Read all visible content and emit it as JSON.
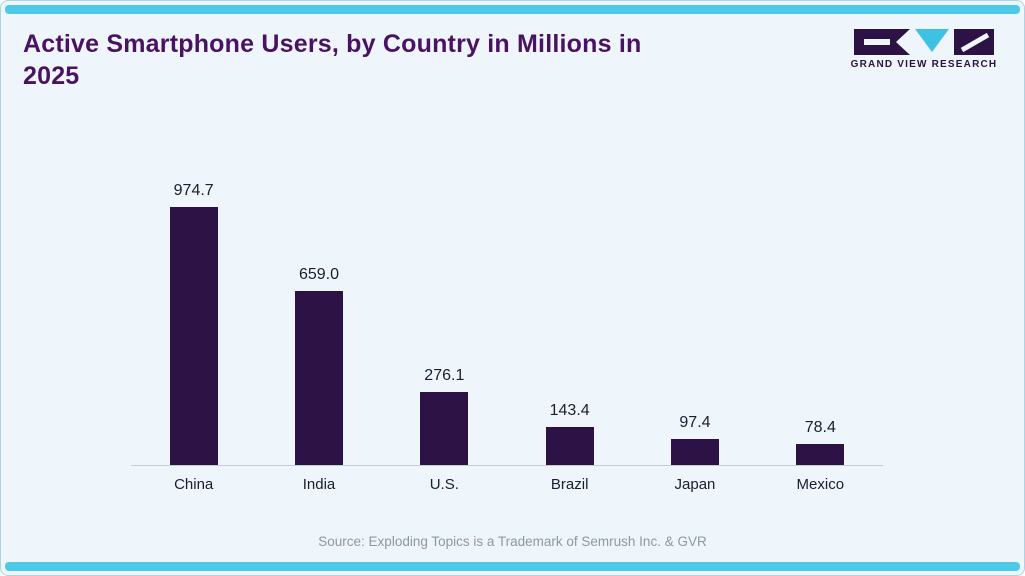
{
  "header": {
    "title": "Active Smartphone Users, by Country in Millions in 2025",
    "logo_text": "GRAND VIEW RESEARCH"
  },
  "chart_data": {
    "type": "bar",
    "title": "Active Smartphone Users, by Country in Millions in 2025",
    "categories": [
      "China",
      "India",
      "U.S.",
      "Brazil",
      "Japan",
      "Mexico"
    ],
    "values": [
      974.7,
      659.0,
      276.1,
      143.4,
      97.4,
      78.4
    ],
    "value_labels": [
      "974.7",
      "659.0",
      "276.1",
      "143.4",
      "97.4",
      "78.4"
    ],
    "xlabel": "",
    "ylabel": "",
    "ylim": [
      0,
      974.7
    ],
    "grid": false,
    "legend": false
  },
  "footer": {
    "source": "Source: Exploding Topics is a Trademark of Semrush Inc. & GVR"
  },
  "colors": {
    "bar": "#2d1245",
    "accent": "#4ec9e8",
    "title": "#4a1263",
    "background": "#eef6fb",
    "logo_dark": "#2d1245",
    "logo_cyan": "#3fc1e3"
  }
}
